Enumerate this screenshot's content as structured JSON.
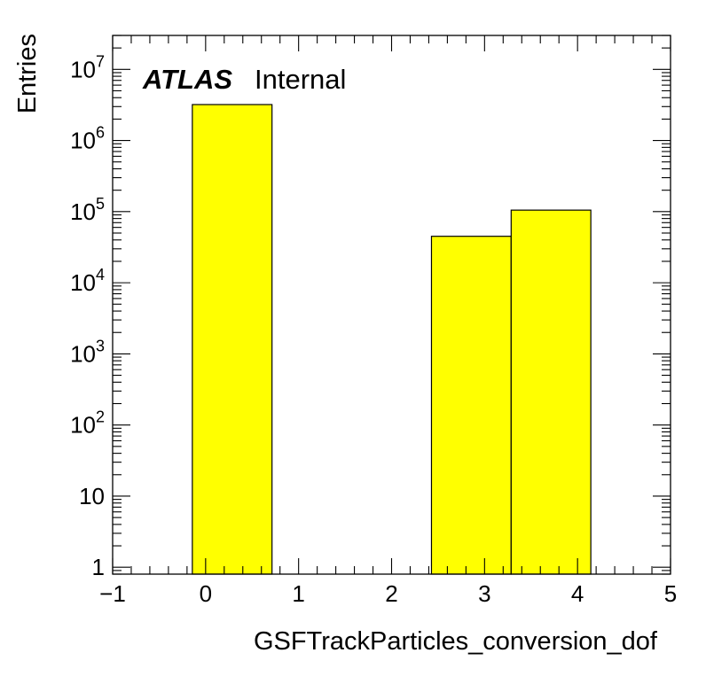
{
  "chart_data": {
    "type": "bar",
    "title": "",
    "xlabel": "GSFTrackParticles_conversion_dof",
    "ylabel": "Entries",
    "xlim": [
      -1,
      5
    ],
    "ylim": [
      0.8,
      30000000
    ],
    "yscale": "log",
    "bar_color": "#ffff00",
    "edge_color": "#000000",
    "bins": [
      {
        "x0": -0.143,
        "x1": 0.714,
        "value": 3200000
      },
      {
        "x0": 2.429,
        "x1": 3.286,
        "value": 45000
      },
      {
        "x0": 3.286,
        "x1": 4.143,
        "value": 105000
      }
    ],
    "x_ticks": [
      {
        "value": -1,
        "label": "−1"
      },
      {
        "value": 0,
        "label": "0"
      },
      {
        "value": 1,
        "label": "1"
      },
      {
        "value": 2,
        "label": "2"
      },
      {
        "value": 3,
        "label": "3"
      },
      {
        "value": 4,
        "label": "4"
      },
      {
        "value": 5,
        "label": "5"
      }
    ],
    "y_ticks": [
      {
        "value": 1,
        "base": "1",
        "exp": ""
      },
      {
        "value": 10,
        "base": "10",
        "exp": ""
      },
      {
        "value": 100,
        "base": "10",
        "exp": "2"
      },
      {
        "value": 1000,
        "base": "10",
        "exp": "3"
      },
      {
        "value": 10000,
        "base": "10",
        "exp": "4"
      },
      {
        "value": 100000,
        "base": "10",
        "exp": "5"
      },
      {
        "value": 1000000,
        "base": "10",
        "exp": "6"
      },
      {
        "value": 10000000,
        "base": "10",
        "exp": "7"
      }
    ],
    "label": {
      "bold": "ATLAS",
      "text": "Internal"
    }
  }
}
